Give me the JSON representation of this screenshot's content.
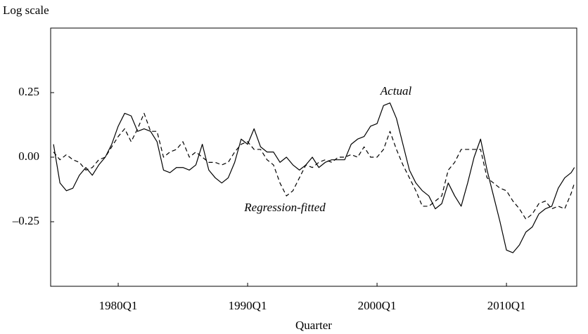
{
  "chart_data": {
    "type": "line",
    "y_axis_label": "Log scale",
    "x_axis_label": "Quarter",
    "annotations": [
      "Actual",
      "Regression-fitted"
    ],
    "x": [
      1975.0,
      1975.5,
      1976.0,
      1976.5,
      1977.0,
      1977.5,
      1978.0,
      1978.5,
      1979.0,
      1979.5,
      1980.0,
      1980.5,
      1981.0,
      1981.5,
      1982.0,
      1982.5,
      1983.0,
      1983.5,
      1984.0,
      1984.5,
      1985.0,
      1985.5,
      1986.0,
      1986.5,
      1987.0,
      1987.5,
      1988.0,
      1988.5,
      1989.0,
      1989.5,
      1990.0,
      1990.5,
      1991.0,
      1991.5,
      1992.0,
      1992.5,
      1993.0,
      1993.5,
      1994.0,
      1994.5,
      1995.0,
      1995.5,
      1996.0,
      1996.5,
      1997.0,
      1997.5,
      1998.0,
      1998.5,
      1999.0,
      1999.5,
      2000.0,
      2000.5,
      2001.0,
      2001.5,
      2002.0,
      2002.5,
      2003.0,
      2003.5,
      2004.0,
      2004.5,
      2005.0,
      2005.5,
      2006.0,
      2006.5,
      2007.0,
      2007.5,
      2008.0,
      2008.5,
      2009.0,
      2009.5,
      2010.0,
      2010.5,
      2011.0,
      2011.5,
      2012.0,
      2012.5,
      2013.0,
      2013.5,
      2014.0,
      2014.5,
      2015.0,
      2015.25
    ],
    "series": [
      {
        "name": "Actual",
        "color": "#000000",
        "style": "solid",
        "values": [
          0.05,
          -0.1,
          -0.13,
          -0.12,
          -0.07,
          -0.04,
          -0.07,
          -0.03,
          0.0,
          0.05,
          0.12,
          0.17,
          0.16,
          0.1,
          0.11,
          0.1,
          0.06,
          -0.05,
          -0.06,
          -0.04,
          -0.04,
          -0.05,
          -0.03,
          0.05,
          -0.05,
          -0.08,
          -0.1,
          -0.08,
          -0.02,
          0.07,
          0.05,
          0.11,
          0.04,
          0.02,
          0.02,
          -0.02,
          0.0,
          -0.03,
          -0.05,
          -0.03,
          0.0,
          -0.04,
          -0.02,
          -0.01,
          -0.01,
          -0.01,
          0.05,
          0.07,
          0.08,
          0.12,
          0.13,
          0.2,
          0.21,
          0.15,
          0.05,
          -0.05,
          -0.1,
          -0.13,
          -0.15,
          -0.2,
          -0.18,
          -0.1,
          -0.15,
          -0.19,
          -0.1,
          0.0,
          0.07,
          -0.05,
          -0.15,
          -0.25,
          -0.36,
          -0.37,
          -0.34,
          -0.29,
          -0.27,
          -0.22,
          -0.2,
          -0.19,
          -0.12,
          -0.08,
          -0.06,
          -0.04
        ]
      },
      {
        "name": "Regression-fitted",
        "color": "#000000",
        "style": "dashed",
        "values": [
          0.02,
          -0.01,
          0.01,
          -0.01,
          -0.02,
          -0.05,
          -0.04,
          -0.01,
          0.0,
          0.04,
          0.08,
          0.11,
          0.06,
          0.11,
          0.17,
          0.1,
          0.1,
          0.0,
          0.02,
          0.03,
          0.06,
          0.0,
          0.02,
          0.0,
          -0.02,
          -0.02,
          -0.03,
          -0.02,
          0.02,
          0.05,
          0.06,
          0.03,
          0.03,
          -0.01,
          -0.03,
          -0.1,
          -0.15,
          -0.13,
          -0.08,
          -0.03,
          -0.04,
          -0.02,
          -0.01,
          -0.02,
          0.0,
          0.0,
          0.01,
          0.0,
          0.04,
          0.0,
          0.0,
          0.03,
          0.1,
          0.03,
          -0.03,
          -0.08,
          -0.13,
          -0.19,
          -0.19,
          -0.17,
          -0.15,
          -0.05,
          -0.02,
          0.03,
          0.03,
          0.03,
          0.03,
          -0.08,
          -0.1,
          -0.12,
          -0.13,
          -0.17,
          -0.2,
          -0.24,
          -0.22,
          -0.18,
          -0.17,
          -0.2,
          -0.19,
          -0.2,
          -0.14,
          -0.1
        ]
      }
    ],
    "xlim": [
      1974.78,
      2015.43
    ],
    "xticks": [
      {
        "value": 1980,
        "label": "1980Q1"
      },
      {
        "value": 1990,
        "label": "1990Q1"
      },
      {
        "value": 2000,
        "label": "2000Q1"
      },
      {
        "value": 2010,
        "label": "2010Q1"
      }
    ],
    "ylim": [
      -0.5,
      0.5
    ],
    "yticks": [
      {
        "value": 0.25,
        "label": "0.25"
      },
      {
        "value": 0,
        "label": "0.00"
      },
      {
        "value": -0.25,
        "label": "–0.25"
      }
    ],
    "grid": false
  }
}
